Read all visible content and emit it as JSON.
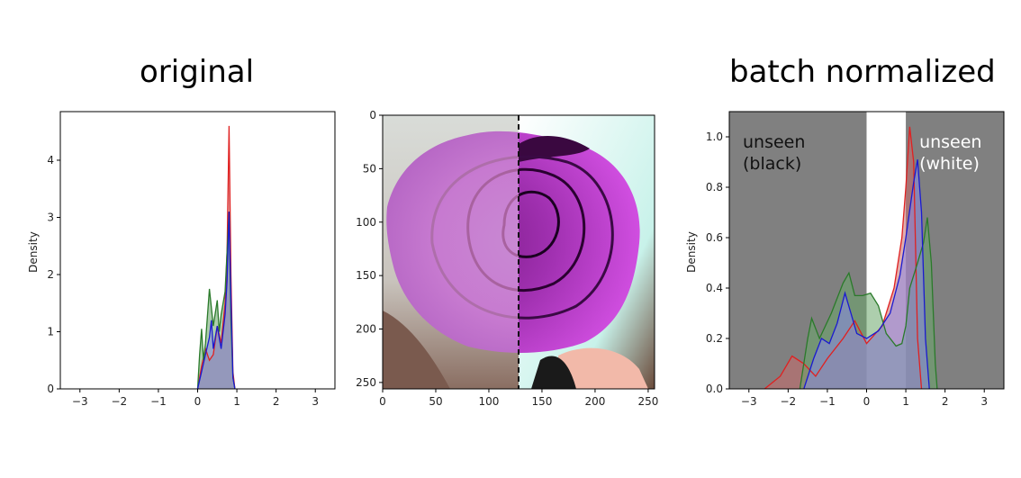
{
  "titles": {
    "left": "original",
    "right": "batch normalized"
  },
  "colors": {
    "red": "#e02020",
    "green": "#2a7a2a",
    "blue": "#1a1ad0",
    "gray_region": "#808080",
    "red_fill": "#c86a6a",
    "green_fill": "#6aa66a",
    "blue_fill": "#8a8ae6"
  },
  "chart_data": [
    {
      "type": "area",
      "ylabel": "Density",
      "xlim": [
        -3.5,
        3.5
      ],
      "ylim": [
        0,
        4.85
      ],
      "xticks": [
        -3,
        -2,
        -1,
        0,
        1,
        2,
        3
      ],
      "yticks": [
        0,
        1,
        2,
        3,
        4
      ],
      "series": [
        {
          "color": "red",
          "points": [
            [
              0.0,
              0
            ],
            [
              0.1,
              0.4
            ],
            [
              0.2,
              0.7
            ],
            [
              0.3,
              0.5
            ],
            [
              0.4,
              0.6
            ],
            [
              0.5,
              1.1
            ],
            [
              0.6,
              0.8
            ],
            [
              0.7,
              1.5
            ],
            [
              0.75,
              2.4
            ],
            [
              0.8,
              4.6
            ],
            [
              0.85,
              2.0
            ],
            [
              0.9,
              0.3
            ],
            [
              0.95,
              0
            ]
          ]
        },
        {
          "color": "green",
          "points": [
            [
              0.0,
              0
            ],
            [
              0.05,
              0.6
            ],
            [
              0.1,
              1.05
            ],
            [
              0.15,
              0.5
            ],
            [
              0.2,
              0.8
            ],
            [
              0.3,
              1.75
            ],
            [
              0.4,
              1.1
            ],
            [
              0.5,
              1.55
            ],
            [
              0.55,
              1.0
            ],
            [
              0.6,
              1.3
            ],
            [
              0.7,
              1.7
            ],
            [
              0.8,
              3.1
            ],
            [
              0.85,
              1.2
            ],
            [
              0.9,
              0.2
            ],
            [
              0.95,
              0
            ]
          ]
        },
        {
          "color": "blue",
          "points": [
            [
              0.0,
              0
            ],
            [
              0.1,
              0.3
            ],
            [
              0.2,
              0.6
            ],
            [
              0.3,
              0.9
            ],
            [
              0.35,
              1.2
            ],
            [
              0.4,
              0.7
            ],
            [
              0.5,
              1.1
            ],
            [
              0.6,
              0.7
            ],
            [
              0.7,
              1.3
            ],
            [
              0.75,
              1.9
            ],
            [
              0.8,
              3.1
            ],
            [
              0.85,
              1.6
            ],
            [
              0.9,
              0.2
            ],
            [
              0.95,
              0
            ]
          ]
        }
      ]
    },
    {
      "type": "image",
      "xlim": [
        0,
        256
      ],
      "ylim": [
        256,
        0
      ],
      "xticks": [
        0,
        50,
        100,
        150,
        200,
        250
      ],
      "yticks": [
        0,
        50,
        100,
        150,
        200,
        250
      ],
      "split_x": 128
    },
    {
      "type": "area",
      "ylabel": "Density",
      "xlim": [
        -3.5,
        3.5
      ],
      "ylim": [
        0,
        1.1
      ],
      "xticks": [
        -3,
        -2,
        -1,
        0,
        1,
        2,
        3
      ],
      "yticks": [
        0.0,
        0.2,
        0.4,
        0.6,
        0.8,
        1.0
      ],
      "regions": [
        {
          "from": -3.5,
          "to": 0,
          "label": "unseen\n(black)",
          "label_color": "#111111"
        },
        {
          "from": 1,
          "to": 3.5,
          "label": "unseen\n(white)",
          "label_color": "#ffffff"
        }
      ],
      "series": [
        {
          "color": "red",
          "points": [
            [
              -2.6,
              0
            ],
            [
              -2.2,
              0.05
            ],
            [
              -1.9,
              0.13
            ],
            [
              -1.6,
              0.1
            ],
            [
              -1.3,
              0.05
            ],
            [
              -1.0,
              0.12
            ],
            [
              -0.6,
              0.2
            ],
            [
              -0.3,
              0.27
            ],
            [
              0.0,
              0.18
            ],
            [
              0.4,
              0.25
            ],
            [
              0.7,
              0.4
            ],
            [
              0.9,
              0.6
            ],
            [
              1.0,
              0.8
            ],
            [
              1.1,
              1.04
            ],
            [
              1.2,
              0.9
            ],
            [
              1.3,
              0.2
            ],
            [
              1.4,
              0
            ]
          ]
        },
        {
          "color": "green",
          "points": [
            [
              -1.7,
              0
            ],
            [
              -1.5,
              0.2
            ],
            [
              -1.4,
              0.28
            ],
            [
              -1.2,
              0.2
            ],
            [
              -0.9,
              0.3
            ],
            [
              -0.6,
              0.42
            ],
            [
              -0.45,
              0.46
            ],
            [
              -0.3,
              0.37
            ],
            [
              -0.1,
              0.37
            ],
            [
              0.1,
              0.38
            ],
            [
              0.3,
              0.33
            ],
            [
              0.5,
              0.22
            ],
            [
              0.75,
              0.17
            ],
            [
              0.9,
              0.18
            ],
            [
              1.0,
              0.25
            ],
            [
              1.1,
              0.4
            ],
            [
              1.3,
              0.5
            ],
            [
              1.45,
              0.58
            ],
            [
              1.55,
              0.68
            ],
            [
              1.65,
              0.5
            ],
            [
              1.75,
              0.1
            ],
            [
              1.8,
              0
            ]
          ]
        },
        {
          "color": "blue",
          "points": [
            [
              -1.6,
              0
            ],
            [
              -1.35,
              0.12
            ],
            [
              -1.15,
              0.2
            ],
            [
              -0.95,
              0.18
            ],
            [
              -0.75,
              0.26
            ],
            [
              -0.55,
              0.38
            ],
            [
              -0.4,
              0.3
            ],
            [
              -0.25,
              0.22
            ],
            [
              0.0,
              0.2
            ],
            [
              0.3,
              0.23
            ],
            [
              0.6,
              0.3
            ],
            [
              0.85,
              0.45
            ],
            [
              1.0,
              0.6
            ],
            [
              1.2,
              0.82
            ],
            [
              1.3,
              0.91
            ],
            [
              1.4,
              0.7
            ],
            [
              1.5,
              0.2
            ],
            [
              1.6,
              0
            ]
          ]
        }
      ]
    }
  ]
}
